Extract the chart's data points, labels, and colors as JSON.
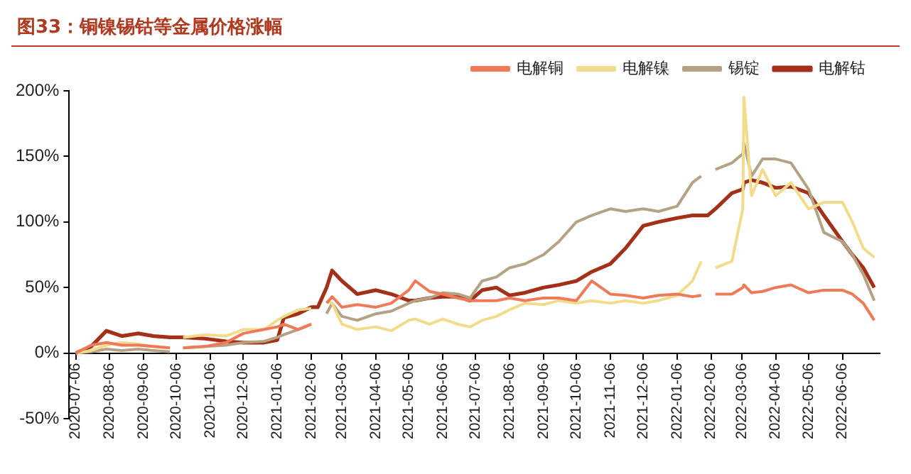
{
  "chart_data": {
    "type": "line",
    "title": "图33：铜镍锡钴等金属价格涨幅",
    "x": [
      "2020-07-06",
      "2020-07-20",
      "2020-08-03",
      "2020-08-17",
      "2020-09-01",
      "2020-09-15",
      "2020-09-30",
      "2020-10-06",
      "2020-10-12",
      "2020-11-01",
      "2020-11-20",
      "2020-12-06",
      "2020-12-25",
      "2021-01-06",
      "2021-01-12",
      "2021-01-25",
      "2021-02-06",
      "2021-02-12",
      "2021-02-20",
      "2021-02-25",
      "2021-03-06",
      "2021-03-20",
      "2021-04-06",
      "2021-04-20",
      "2021-05-06",
      "2021-05-12",
      "2021-05-25",
      "2021-06-06",
      "2021-06-20",
      "2021-07-01",
      "2021-07-12",
      "2021-07-25",
      "2021-08-06",
      "2021-08-20",
      "2021-09-06",
      "2021-09-20",
      "2021-10-06",
      "2021-10-20",
      "2021-11-06",
      "2021-11-20",
      "2021-12-06",
      "2021-12-20",
      "2022-01-06",
      "2022-01-20",
      "2022-01-28",
      "2022-02-03",
      "2022-02-10",
      "2022-02-25",
      "2022-03-07",
      "2022-03-08",
      "2022-03-15",
      "2022-03-25",
      "2022-04-06",
      "2022-04-20",
      "2022-05-06",
      "2022-05-20",
      "2022-06-06",
      "2022-06-15",
      "2022-06-25",
      "2022-07-05"
    ],
    "series": [
      {
        "name": "电解铜",
        "color": "#f07a58",
        "values": [
          0,
          6,
          8,
          6,
          6,
          5,
          4,
          null,
          4,
          5,
          8,
          15,
          18,
          20,
          22,
          18,
          22,
          null,
          38,
          43,
          35,
          37,
          35,
          38,
          48,
          55,
          47,
          45,
          42,
          40,
          40,
          40,
          42,
          40,
          42,
          42,
          40,
          55,
          45,
          44,
          42,
          44,
          45,
          43,
          44,
          null,
          45,
          45,
          50,
          52,
          46,
          47,
          50,
          52,
          46,
          48,
          48,
          45,
          38,
          25
        ]
      },
      {
        "name": "电解镍",
        "color": "#f2dc8c",
        "values": [
          0,
          2,
          6,
          8,
          7,
          5,
          4,
          null,
          12,
          14,
          13,
          18,
          18,
          25,
          28,
          33,
          34,
          null,
          40,
          38,
          22,
          18,
          20,
          17,
          25,
          26,
          22,
          26,
          22,
          20,
          25,
          28,
          33,
          38,
          37,
          40,
          38,
          40,
          38,
          40,
          38,
          40,
          44,
          55,
          70,
          null,
          65,
          70,
          110,
          195,
          120,
          140,
          120,
          130,
          110,
          115,
          115,
          100,
          80,
          73
        ]
      },
      {
        "name": "锡锭",
        "color": "#b5a184",
        "values": [
          0,
          1,
          3,
          2,
          3,
          2,
          1,
          null,
          4,
          5,
          6,
          8,
          9,
          12,
          14,
          18,
          22,
          null,
          30,
          38,
          28,
          25,
          30,
          32,
          38,
          40,
          42,
          46,
          45,
          42,
          55,
          58,
          65,
          68,
          75,
          85,
          100,
          105,
          110,
          108,
          110,
          108,
          112,
          130,
          135,
          null,
          140,
          145,
          152,
          160,
          135,
          148,
          148,
          145,
          125,
          92,
          85,
          75,
          60,
          40
        ]
      },
      {
        "name": "电解钴",
        "color": "#a5301a",
        "values": [
          0,
          5,
          17,
          13,
          15,
          13,
          12,
          12,
          12,
          11,
          9,
          8,
          8,
          10,
          27,
          30,
          35,
          35,
          50,
          63,
          55,
          45,
          48,
          45,
          40,
          40,
          42,
          43,
          43,
          40,
          48,
          50,
          44,
          46,
          50,
          52,
          55,
          62,
          68,
          80,
          97,
          100,
          103,
          105,
          105,
          105,
          110,
          122,
          125,
          130,
          132,
          130,
          126,
          127,
          122,
          105,
          85,
          75,
          65,
          50
        ]
      }
    ],
    "xlim": [
      "2020-06-30",
      "2022-07-10"
    ],
    "xticks": [
      "2020-07-06",
      "2020-08-06",
      "2020-09-06",
      "2020-10-06",
      "2020-11-06",
      "2020-12-06",
      "2021-01-06",
      "2021-02-06",
      "2021-03-06",
      "2021-04-06",
      "2021-05-06",
      "2021-06-06",
      "2021-07-06",
      "2021-08-06",
      "2021-09-06",
      "2021-10-06",
      "2021-11-06",
      "2021-12-06",
      "2022-01-06",
      "2022-02-06",
      "2022-03-06",
      "2022-04-06",
      "2022-05-06",
      "2022-06-06"
    ],
    "ylim": [
      -50,
      200
    ],
    "yticks": [
      {
        "value": -50,
        "label": "-50%"
      },
      {
        "value": 0,
        "label": "0%"
      },
      {
        "value": 50,
        "label": "50%"
      },
      {
        "value": 100,
        "label": "100%"
      },
      {
        "value": 150,
        "label": "150%"
      },
      {
        "value": 200,
        "label": "200%"
      }
    ],
    "grid": false,
    "legend": "top right",
    "marker": "none",
    "line_style": "solid"
  }
}
